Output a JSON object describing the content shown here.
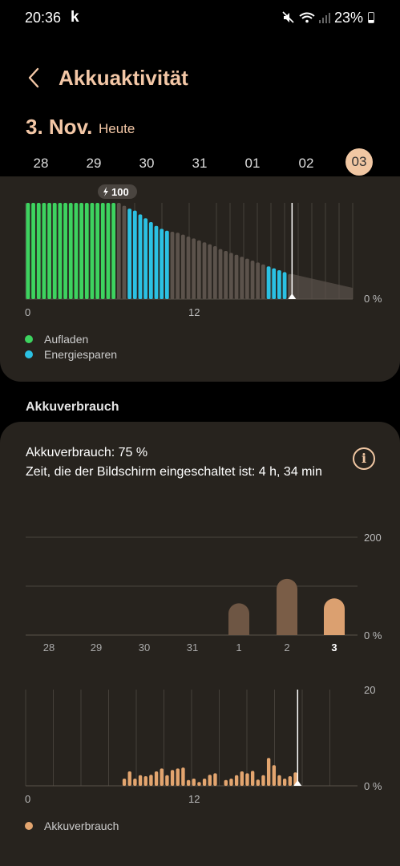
{
  "status": {
    "time": "20:36",
    "app_letter": "k",
    "battery_pct": "23%",
    "battery_level": 0.23,
    "icons": [
      "mute-icon",
      "wifi-icon",
      "signal-icon",
      "battery-icon"
    ]
  },
  "header": {
    "title": "Akkuaktivität"
  },
  "date": {
    "main": "3. Nov.",
    "sub": "Heute"
  },
  "days": [
    "28",
    "29",
    "30",
    "31",
    "01",
    "02",
    "03"
  ],
  "selected_day": "03",
  "battery_chart": {
    "charge_badge": "100",
    "x_tick_labels": [
      "0",
      "12"
    ],
    "y_min_label": "0 %",
    "legend": [
      {
        "label": "Aufladen",
        "color": "#3dd35f"
      },
      {
        "label": "Energiesparen",
        "color": "#2bc1e3"
      }
    ]
  },
  "section_title": "Akkuverbrauch",
  "usage": {
    "line1": "Akkuverbrauch: 75 %",
    "line2": "Zeit, die der Bildschirm eingeschaltet ist: 4 h, 34 min"
  },
  "chart_data": [
    {
      "type": "bar",
      "title": "",
      "description_note": "",
      "x_tick_labels": [
        "0",
        "12"
      ],
      "ylim": [
        0,
        100
      ],
      "y_unit_label": "0 %",
      "series_colors": {
        "normal": "#5b524b",
        "charging": "#3dd35f",
        "power_saving": "#2bc1e3"
      },
      "values": [
        100,
        100,
        100,
        100,
        100,
        100,
        100,
        100,
        100,
        100,
        100,
        100,
        100,
        100,
        100,
        100,
        100,
        100,
        97,
        94,
        92,
        88,
        84,
        80,
        76,
        73,
        71,
        70,
        69,
        67,
        65,
        63,
        61,
        59,
        57,
        55,
        52,
        50,
        48,
        46,
        44,
        42,
        40,
        38,
        36,
        34,
        32,
        30,
        28,
        26
      ],
      "states": [
        "c",
        "c",
        "c",
        "c",
        "c",
        "c",
        "c",
        "c",
        "c",
        "c",
        "c",
        "c",
        "c",
        "c",
        "c",
        "c",
        "c",
        "n",
        "n",
        "s",
        "s",
        "s",
        "s",
        "s",
        "s",
        "s",
        "s",
        "n",
        "n",
        "n",
        "n",
        "n",
        "n",
        "n",
        "n",
        "n",
        "n",
        "n",
        "n",
        "n",
        "n",
        "n",
        "n",
        "n",
        "n",
        "s",
        "s",
        "s",
        "s",
        "n"
      ]
    },
    {
      "type": "bar",
      "title": "",
      "categories": [
        "28",
        "29",
        "30",
        "31",
        "1",
        "2",
        "3"
      ],
      "values": [
        0,
        0,
        0,
        0,
        65,
        115,
        75
      ],
      "ylim": [
        0,
        200
      ],
      "y_tick_labels": [
        "200",
        "0 %"
      ],
      "colors": [
        "#6e5644",
        "#6e5644",
        "#6e5644",
        "#6e5644",
        "#6e5644",
        "#7a5d47",
        "#dba070"
      ]
    },
    {
      "type": "bar",
      "title": "",
      "x_tick_labels": [
        "0",
        "12"
      ],
      "ylim": [
        0,
        20
      ],
      "y_tick_labels": [
        "20",
        "0 %"
      ],
      "legend": [
        {
          "label": "Akkuverbrauch",
          "color": "#e3a56f"
        }
      ],
      "values": [
        0,
        0,
        0,
        0,
        0,
        0,
        0,
        0,
        0,
        0,
        0,
        0,
        0,
        0,
        0,
        0,
        0,
        0,
        1.5,
        3,
        1.5,
        2.2,
        2,
        2.3,
        3,
        3.6,
        2.2,
        3.3,
        3.6,
        3.8,
        1.2,
        1.5,
        0.8,
        1.5,
        2.3,
        2.6,
        0,
        1.2,
        1.5,
        2.2,
        3,
        2.6,
        3.1,
        1.3,
        2.2,
        5.8,
        4.3,
        2.2,
        1.5,
        2,
        2.8
      ]
    }
  ]
}
